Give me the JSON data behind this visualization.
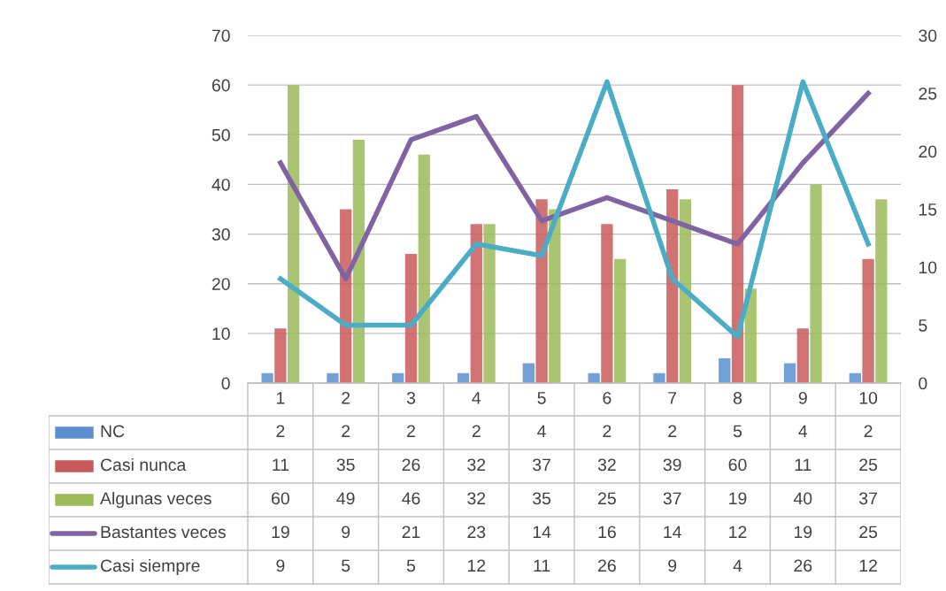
{
  "chart_data": {
    "type": "bar",
    "categories": [
      "1",
      "2",
      "3",
      "4",
      "5",
      "6",
      "7",
      "8",
      "9",
      "10"
    ],
    "series": [
      {
        "name": "NC",
        "color": "#5b8fd0",
        "values": [
          2,
          2,
          2,
          2,
          4,
          2,
          2,
          5,
          4,
          2
        ]
      },
      {
        "name": "Casi nunca",
        "color": "#c9595a",
        "values": [
          11,
          35,
          26,
          32,
          37,
          32,
          39,
          60,
          11,
          25
        ]
      },
      {
        "name": "Algunas veces",
        "color": "#9bbb59",
        "values": [
          60,
          49,
          46,
          32,
          35,
          25,
          37,
          19,
          40,
          37
        ]
      },
      {
        "name": "Bastantes veces",
        "color": "#8064a2",
        "type": "line",
        "axis": "y2",
        "values": [
          19,
          9,
          21,
          23,
          14,
          16,
          14,
          12,
          19,
          25
        ]
      },
      {
        "name": "Casi siempre",
        "color": "#4bacc6",
        "type": "line",
        "axis": "y2",
        "values": [
          9,
          5,
          5,
          12,
          11,
          26,
          9,
          4,
          26,
          12
        ]
      }
    ],
    "ylim": [
      0,
      70
    ],
    "yticks": [
      0,
      10,
      20,
      30,
      40,
      50,
      60,
      70
    ],
    "y2lim": [
      0,
      30
    ],
    "y2ticks": [
      0,
      5,
      10,
      15,
      20,
      25,
      30
    ],
    "grid": "y",
    "legend": "bottom",
    "data_labels": true,
    "marker": "none",
    "line_style": "solid"
  }
}
